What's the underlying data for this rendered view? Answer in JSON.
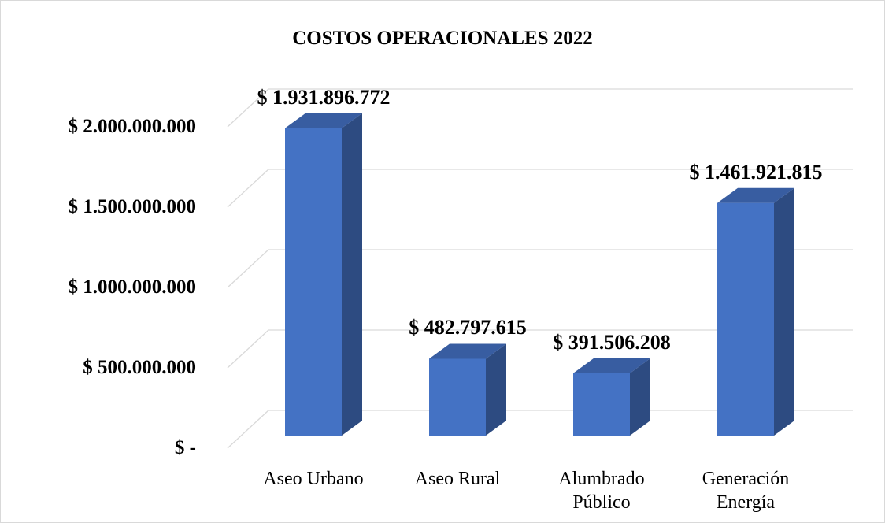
{
  "chart_data": {
    "type": "bar3d",
    "title": "COSTOS OPERACIONALES 2022",
    "categories": [
      "Aseo Urbano",
      "Aseo Rural",
      "Alumbrado Público",
      "Generación Energía"
    ],
    "values": [
      1931896772,
      482797615,
      391506208,
      1461921815
    ],
    "value_labels": [
      "$ 1.931.896.772",
      "$ 482.797.615",
      "$ 391.506.208",
      "$ 1.461.921.815"
    ],
    "color": "#4472c4",
    "ylim": [
      0,
      2000000000
    ],
    "yticks": [
      {
        "value": 0,
        "label": "$ -"
      },
      {
        "value": 500000000,
        "label": "$ 500.000.000"
      },
      {
        "value": 1000000000,
        "label": "$ 1.000.000.000"
      },
      {
        "value": 1500000000,
        "label": "$ 1.500.000.000"
      },
      {
        "value": 2000000000,
        "label": "$ 2.000.000.000"
      }
    ],
    "grid": true
  }
}
